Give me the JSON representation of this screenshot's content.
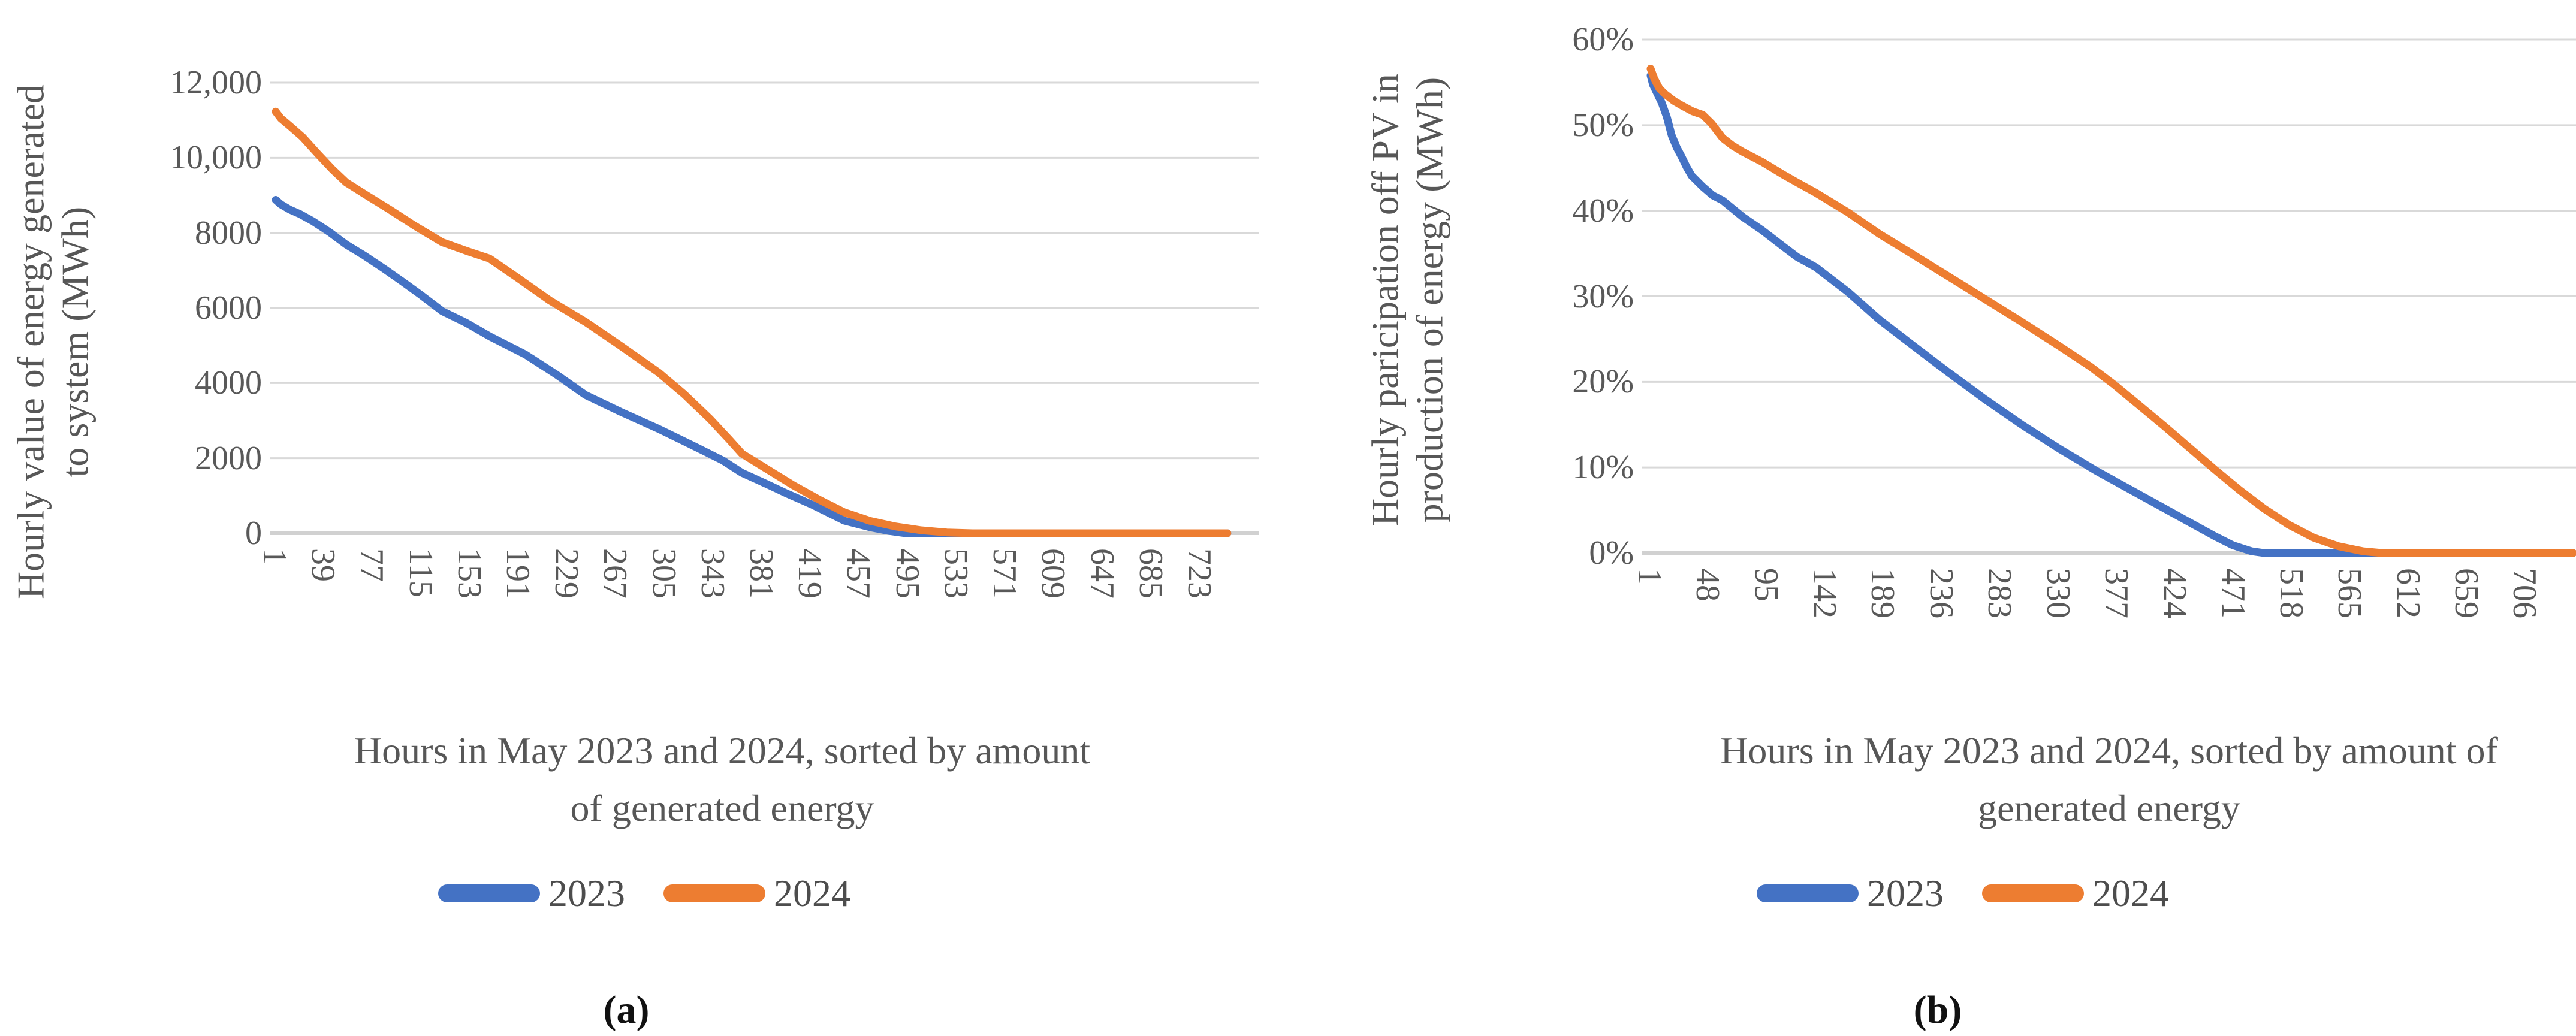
{
  "figure": {
    "background": "#ffffff",
    "colors": {
      "series2023": "#4472C4",
      "series2024": "#ED7D31",
      "grid": "#D9D9D9",
      "axis_line": "#D1D1D1",
      "axis_text": "#595959"
    }
  },
  "chart_data": [
    {
      "id": "a",
      "type": "line",
      "caption": "(a)",
      "xlabel": "Hours in May 2023 and 2024, sorted by amount of generated energy",
      "xlabel_line1": "Hours in May 2023 and 2024, sorted by amount",
      "xlabel_line2": "of generated energy",
      "ylabel": "Hourly value of energy generated to system (MWh)",
      "ylabel_line1": "Hourly value of energy generated",
      "ylabel_line2": "to system (MWh)",
      "xlim": [
        1,
        744
      ],
      "ylim": [
        0,
        12000
      ],
      "grid": true,
      "legend_position": "bottom",
      "x_ticks": [
        1,
        39,
        77,
        115,
        153,
        191,
        229,
        267,
        305,
        343,
        381,
        419,
        457,
        495,
        533,
        571,
        609,
        647,
        685,
        723
      ],
      "y_tick_labels": [
        "12,000",
        "10,000",
        "8000",
        "6000",
        "4000",
        "2000",
        "0"
      ],
      "y_tick_values": [
        12000,
        10000,
        8000,
        6000,
        4000,
        2000,
        0
      ],
      "series": [
        {
          "name": "2023",
          "color": "#4472C4",
          "points": [
            [
              1,
              8880
            ],
            [
              5,
              8760
            ],
            [
              12,
              8620
            ],
            [
              20,
              8500
            ],
            [
              30,
              8310
            ],
            [
              43,
              8020
            ],
            [
              56,
              7690
            ],
            [
              70,
              7400
            ],
            [
              85,
              7060
            ],
            [
              100,
              6700
            ],
            [
              115,
              6330
            ],
            [
              131,
              5915
            ],
            [
              150,
              5600
            ],
            [
              168,
              5245
            ],
            [
              196,
              4760
            ],
            [
              220,
              4230
            ],
            [
              243,
              3680
            ],
            [
              270,
              3240
            ],
            [
              300,
              2780
            ],
            [
              330,
              2280
            ],
            [
              350,
              1940
            ],
            [
              365,
              1610
            ],
            [
              385,
              1300
            ],
            [
              400,
              1060
            ],
            [
              420,
              760
            ],
            [
              445,
              335
            ],
            [
              465,
              160
            ],
            [
              480,
              60
            ],
            [
              493,
              0
            ],
            [
              744,
              0
            ]
          ]
        },
        {
          "name": "2024",
          "color": "#ED7D31",
          "points": [
            [
              1,
              11230
            ],
            [
              5,
              11050
            ],
            [
              12,
              10850
            ],
            [
              22,
              10550
            ],
            [
              34,
              10100
            ],
            [
              45,
              9700
            ],
            [
              56,
              9345
            ],
            [
              72,
              9000
            ],
            [
              90,
              8620
            ],
            [
              110,
              8180
            ],
            [
              131,
              7750
            ],
            [
              150,
              7520
            ],
            [
              168,
              7315
            ],
            [
              190,
              6800
            ],
            [
              215,
              6200
            ],
            [
              243,
              5625
            ],
            [
              270,
              5000
            ],
            [
              300,
              4280
            ],
            [
              320,
              3700
            ],
            [
              340,
              3050
            ],
            [
              355,
              2500
            ],
            [
              365,
              2120
            ],
            [
              385,
              1700
            ],
            [
              405,
              1280
            ],
            [
              425,
              900
            ],
            [
              445,
              558
            ],
            [
              465,
              330
            ],
            [
              485,
              180
            ],
            [
              505,
              80
            ],
            [
              525,
              20
            ],
            [
              545,
              0
            ],
            [
              744,
              0
            ]
          ]
        }
      ],
      "legend": [
        {
          "label": "2023",
          "color": "#4472C4"
        },
        {
          "label": "2024",
          "color": "#ED7D31"
        }
      ]
    },
    {
      "id": "b",
      "type": "line",
      "caption": "(b)",
      "xlabel": "Hours in May 2023 and 2024, sorted by amount of generated energy",
      "xlabel_line1": "Hours in May 2023 and 2024, sorted by amount of",
      "xlabel_line2": "generated energy",
      "ylabel": "Hourly paricipation off PV in production of energy (MWh)",
      "ylabel_line1": "Hourly paricipation off PV in",
      "ylabel_line2": "production of energy (MWh)",
      "xlim": [
        1,
        744
      ],
      "ylim": [
        0,
        60
      ],
      "unit": "%",
      "grid": true,
      "legend_position": "bottom",
      "x_ticks": [
        1,
        48,
        95,
        142,
        189,
        236,
        283,
        330,
        377,
        424,
        471,
        518,
        565,
        612,
        659,
        706
      ],
      "y_tick_labels": [
        "60%",
        "50%",
        "40%",
        "30%",
        "20%",
        "10%",
        "0%"
      ],
      "y_tick_values": [
        60,
        50,
        40,
        30,
        20,
        10,
        0
      ],
      "series": [
        {
          "name": "2023",
          "color": "#4472C4",
          "points": [
            [
              1,
              55.8
            ],
            [
              3,
              54.7
            ],
            [
              6,
              53.8
            ],
            [
              10,
              52.6
            ],
            [
              14,
              51.0
            ],
            [
              18,
              48.8
            ],
            [
              22,
              47.4
            ],
            [
              26,
              46.3
            ],
            [
              30,
              45.1
            ],
            [
              34,
              44.1
            ],
            [
              43,
              42.8
            ],
            [
              51,
              41.8
            ],
            [
              59,
              41.2
            ],
            [
              75,
              39.3
            ],
            [
              91,
              37.7
            ],
            [
              108,
              35.8
            ],
            [
              119,
              34.6
            ],
            [
              134,
              33.4
            ],
            [
              160,
              30.5
            ],
            [
              185,
              27.3
            ],
            [
              211,
              24.4
            ],
            [
              240,
              21.2
            ],
            [
              270,
              18.0
            ],
            [
              300,
              15.0
            ],
            [
              330,
              12.2
            ],
            [
              360,
              9.6
            ],
            [
              390,
              7.2
            ],
            [
              415,
              5.2
            ],
            [
              435,
              3.6
            ],
            [
              455,
              2.0
            ],
            [
              470,
              0.9
            ],
            [
              485,
              0.2
            ],
            [
              495,
              0
            ],
            [
              744,
              0
            ]
          ]
        },
        {
          "name": "2024",
          "color": "#ED7D31",
          "points": [
            [
              1,
              56.6
            ],
            [
              4,
              55.4
            ],
            [
              8,
              54.3
            ],
            [
              12,
              53.7
            ],
            [
              20,
              52.8
            ],
            [
              26,
              52.3
            ],
            [
              35,
              51.6
            ],
            [
              43,
              51.2
            ],
            [
              50,
              50.2
            ],
            [
              59,
              48.5
            ],
            [
              67,
              47.6
            ],
            [
              75,
              46.9
            ],
            [
              91,
              45.7
            ],
            [
              108,
              44.2
            ],
            [
              119,
              43.3
            ],
            [
              134,
              42.1
            ],
            [
              160,
              39.8
            ],
            [
              185,
              37.3
            ],
            [
              211,
              35.0
            ],
            [
              240,
              32.4
            ],
            [
              270,
              29.7
            ],
            [
              300,
              27.0
            ],
            [
              330,
              24.2
            ],
            [
              355,
              21.8
            ],
            [
              375,
              19.6
            ],
            [
              395,
              17.2
            ],
            [
              415,
              14.8
            ],
            [
              435,
              12.3
            ],
            [
              455,
              9.8
            ],
            [
              475,
              7.4
            ],
            [
              495,
              5.2
            ],
            [
              515,
              3.3
            ],
            [
              535,
              1.8
            ],
            [
              555,
              0.8
            ],
            [
              575,
              0.2
            ],
            [
              590,
              0
            ],
            [
              744,
              0
            ]
          ]
        }
      ],
      "legend": [
        {
          "label": "2023",
          "color": "#4472C4"
        },
        {
          "label": "2024",
          "color": "#ED7D31"
        }
      ]
    }
  ]
}
